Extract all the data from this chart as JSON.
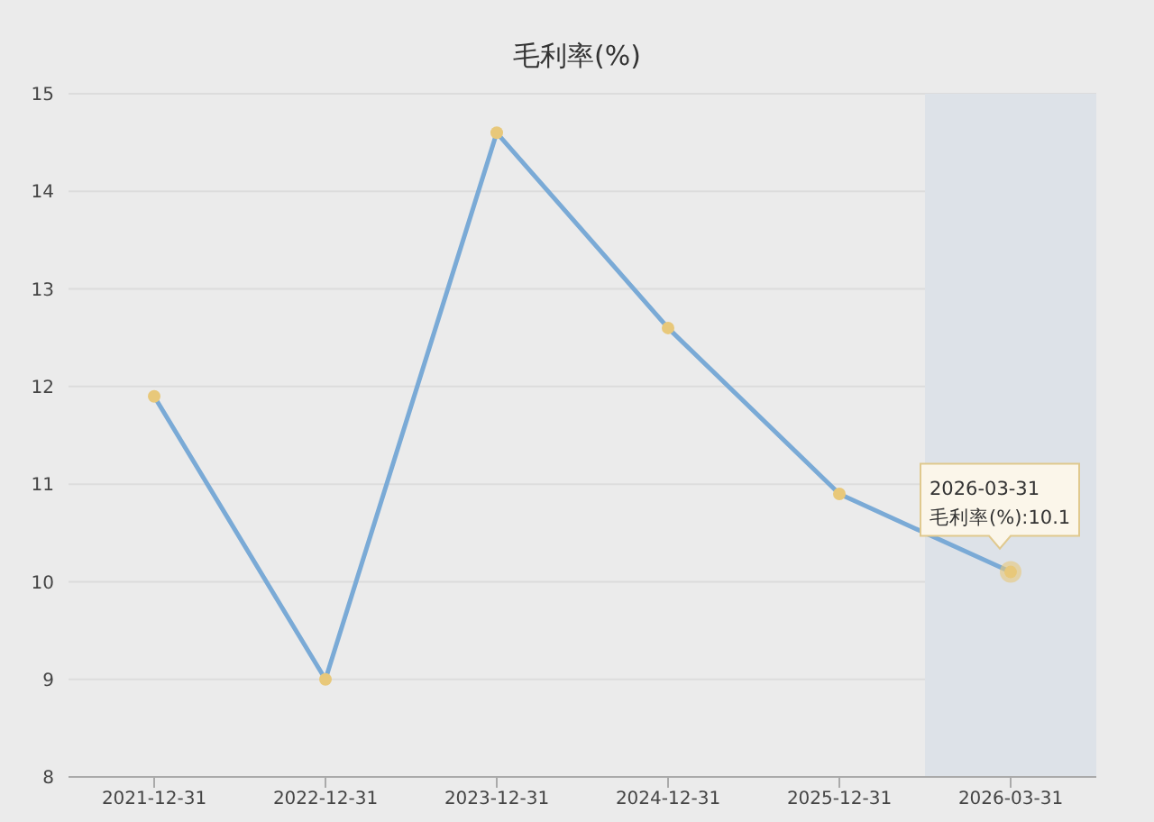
{
  "chart_data": {
    "type": "line",
    "title": "毛利率(%)",
    "categories": [
      "2021-12-31",
      "2022-12-31",
      "2023-12-31",
      "2024-12-31",
      "2025-12-31",
      "2026-03-31"
    ],
    "series": [
      {
        "color": "#7aaad6",
        "values": [
          11.9,
          9.0,
          14.6,
          12.6,
          10.9,
          10.1
        ]
      }
    ],
    "ylim": [
      8,
      15
    ],
    "yticks": [
      8,
      9,
      10,
      11,
      12,
      13,
      14,
      15
    ],
    "grid": "y",
    "marker": "circle",
    "line_style": "solid",
    "bands": [
      {
        "axis": "x",
        "from": "2026-03-31",
        "to": "2026-03-31",
        "color": "#dde2e8"
      }
    ],
    "annotations": [
      {
        "text": "2026-03-31\n毛利率(%):10.1",
        "x": "2026-03-31",
        "y": 10.1
      }
    ]
  }
}
